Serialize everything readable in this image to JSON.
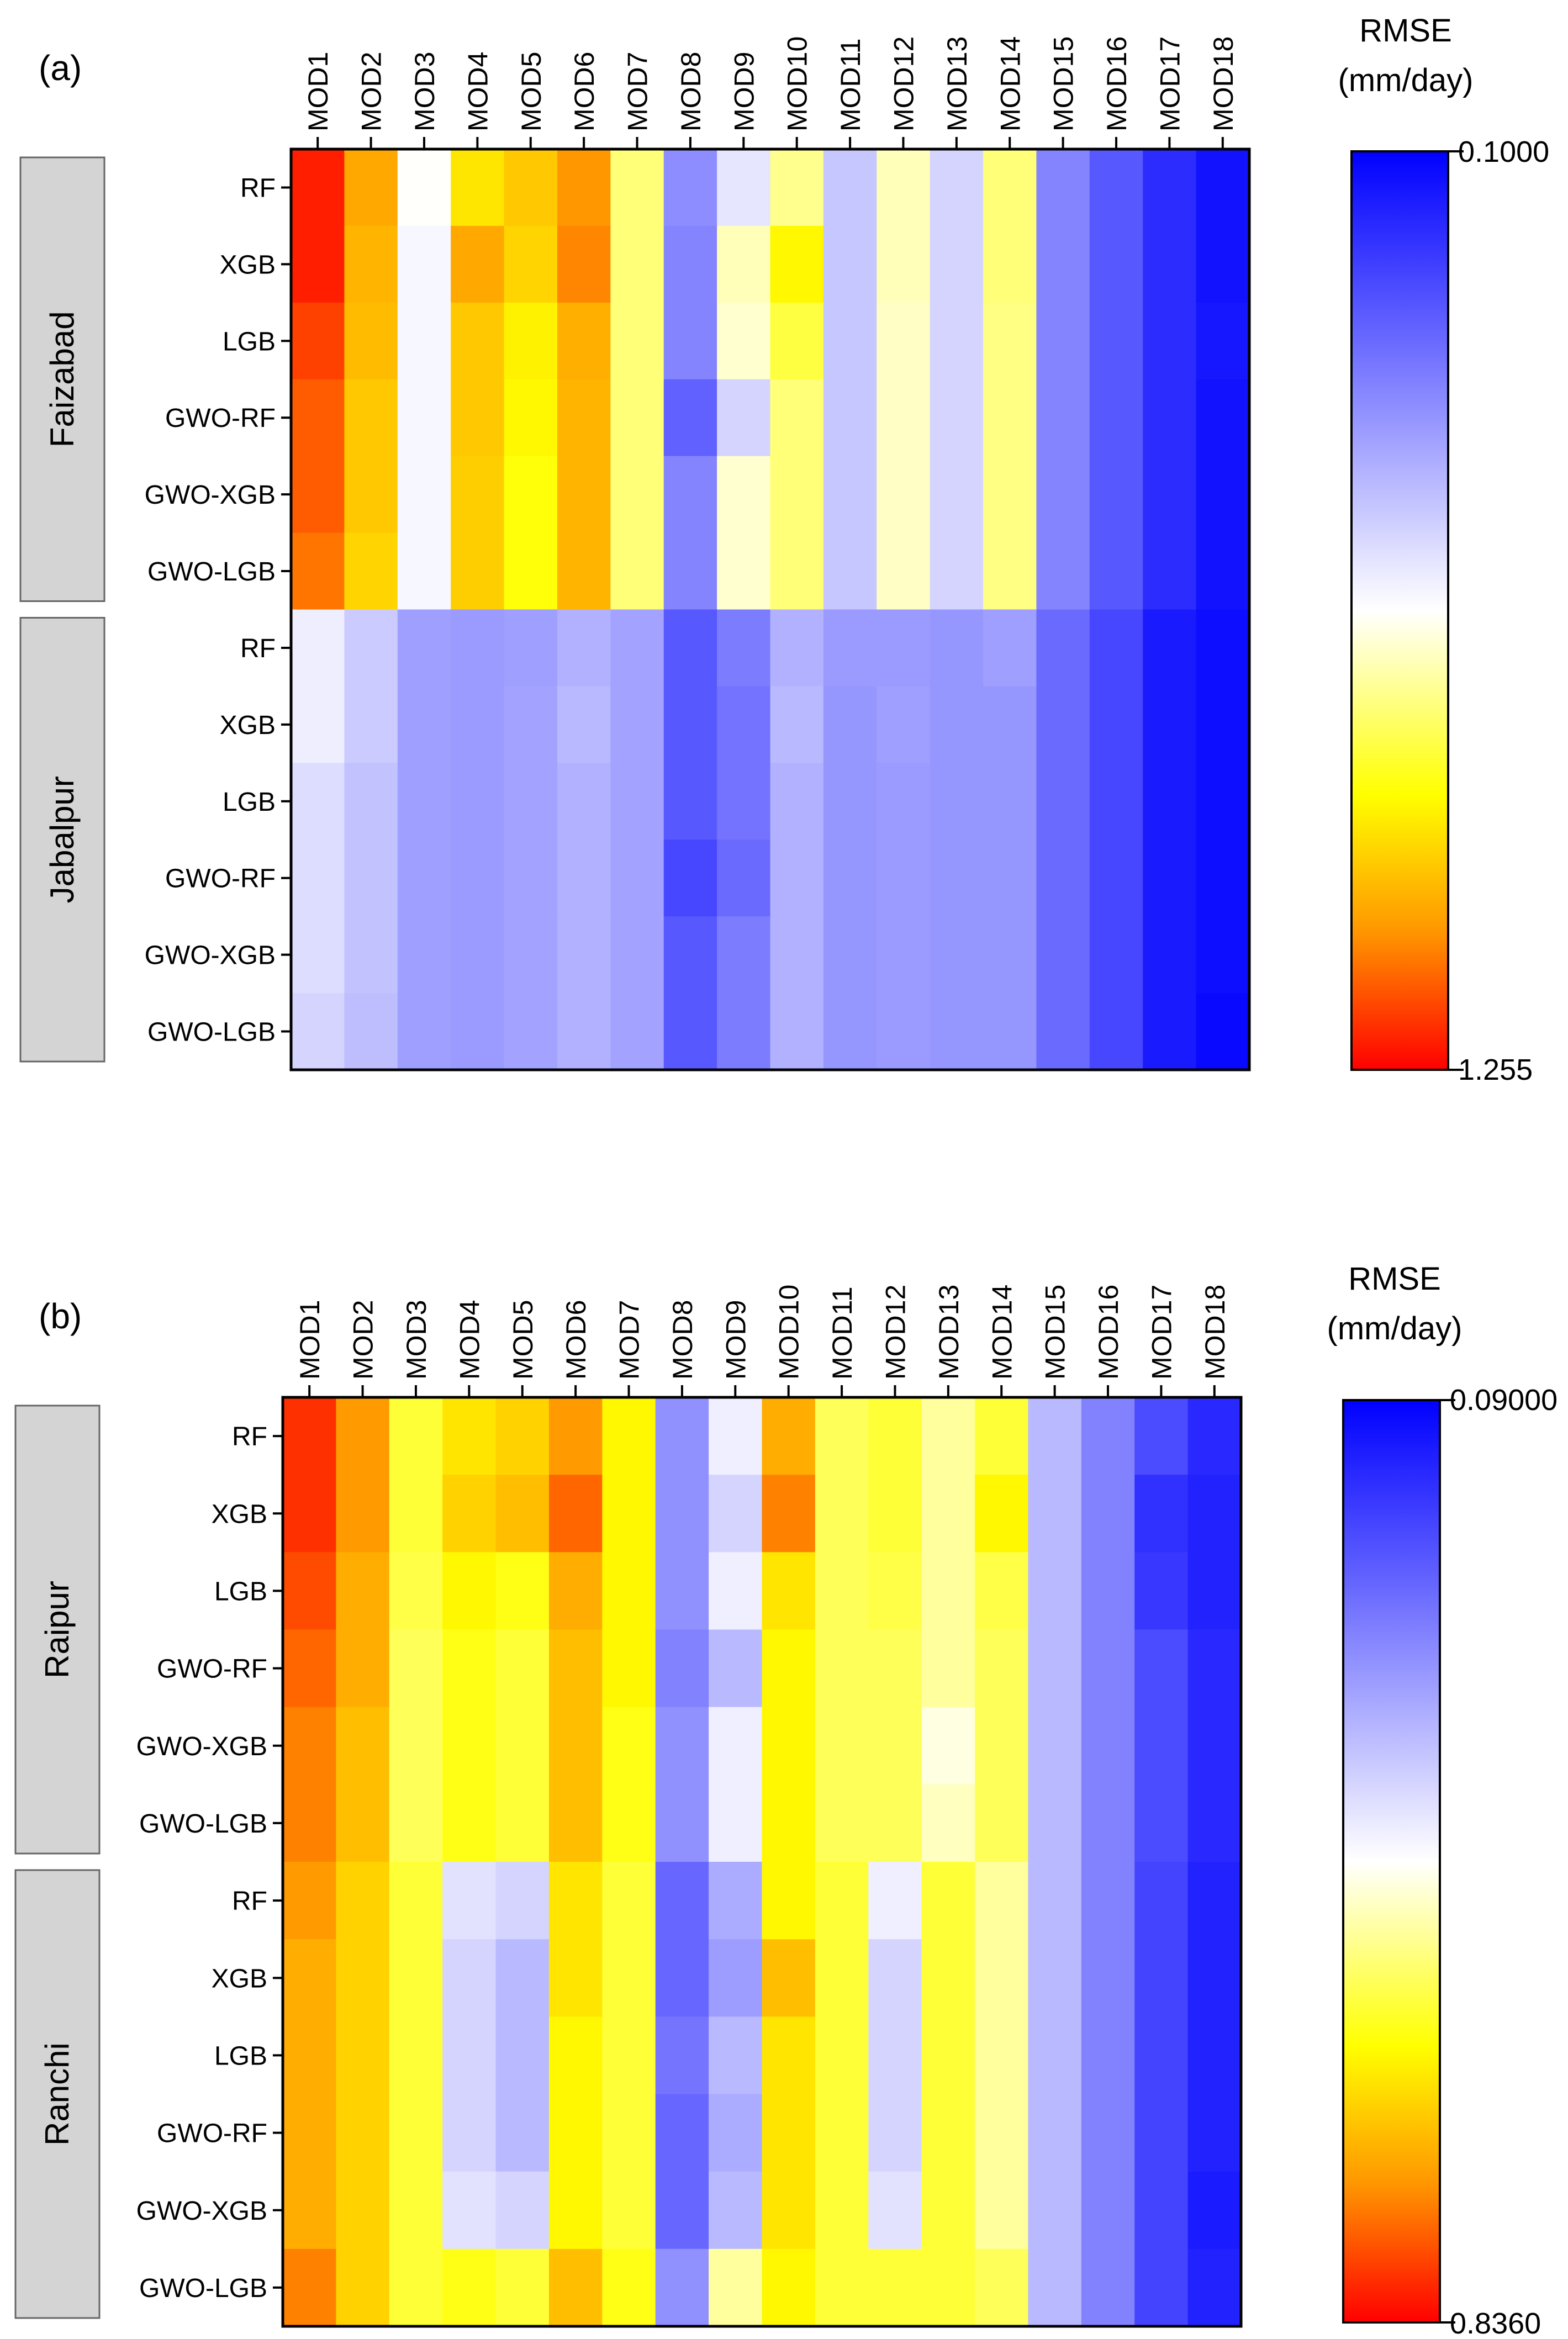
{
  "chart_data": [
    {
      "type": "heatmap",
      "panel_label": "(a)",
      "metric": "RMSE",
      "unit": "(mm/day)",
      "colorbar": {
        "top": "0.1000",
        "bottom": "1.255",
        "min": 0.1,
        "max": 1.255
      },
      "x_labels": [
        "MOD1",
        "MOD2",
        "MOD3",
        "MOD4",
        "MOD5",
        "MOD6",
        "MOD7",
        "MOD8",
        "MOD9",
        "MOD10",
        "MOD11",
        "MOD12",
        "MOD13",
        "MOD14",
        "MOD15",
        "MOD16",
        "MOD17",
        "MOD18"
      ],
      "y_labels": [
        "RF",
        "XGB",
        "LGB",
        "GWO-RF",
        "GWO-XGB",
        "GWO-LGB",
        "RF",
        "XGB",
        "LGB",
        "GWO-RF",
        "GWO-XGB",
        "GWO-LGB"
      ],
      "groups": [
        {
          "name": "Faizabad",
          "rows": 6
        },
        {
          "name": "Jabalpur",
          "rows": 6
        }
      ],
      "values": [
        [
          1.22,
          1.05,
          0.68,
          0.95,
          1.0,
          1.08,
          0.8,
          0.42,
          0.62,
          0.78,
          0.55,
          0.74,
          0.58,
          0.8,
          0.4,
          0.3,
          0.2,
          0.14
        ],
        [
          1.22,
          1.03,
          0.66,
          1.05,
          0.98,
          1.1,
          0.8,
          0.4,
          0.74,
          0.92,
          0.55,
          0.74,
          0.58,
          0.8,
          0.4,
          0.3,
          0.2,
          0.14
        ],
        [
          1.18,
          1.02,
          0.66,
          1.0,
          0.93,
          1.04,
          0.8,
          0.4,
          0.72,
          0.85,
          0.55,
          0.73,
          0.58,
          0.79,
          0.4,
          0.3,
          0.2,
          0.15
        ],
        [
          1.15,
          1.0,
          0.66,
          1.0,
          0.92,
          1.03,
          0.8,
          0.32,
          0.58,
          0.8,
          0.55,
          0.73,
          0.58,
          0.79,
          0.4,
          0.3,
          0.2,
          0.14
        ],
        [
          1.15,
          1.0,
          0.66,
          0.99,
          0.9,
          1.03,
          0.8,
          0.4,
          0.72,
          0.8,
          0.55,
          0.73,
          0.58,
          0.79,
          0.4,
          0.3,
          0.2,
          0.14
        ],
        [
          1.12,
          0.98,
          0.66,
          0.99,
          0.9,
          1.03,
          0.8,
          0.4,
          0.72,
          0.8,
          0.55,
          0.73,
          0.58,
          0.79,
          0.4,
          0.3,
          0.2,
          0.14
        ],
        [
          0.64,
          0.56,
          0.46,
          0.45,
          0.46,
          0.5,
          0.47,
          0.3,
          0.38,
          0.5,
          0.45,
          0.45,
          0.44,
          0.46,
          0.34,
          0.26,
          0.16,
          0.13
        ],
        [
          0.64,
          0.56,
          0.46,
          0.45,
          0.47,
          0.52,
          0.47,
          0.3,
          0.36,
          0.52,
          0.44,
          0.46,
          0.44,
          0.44,
          0.34,
          0.26,
          0.16,
          0.13
        ],
        [
          0.6,
          0.54,
          0.46,
          0.45,
          0.47,
          0.5,
          0.47,
          0.3,
          0.36,
          0.5,
          0.44,
          0.45,
          0.44,
          0.44,
          0.34,
          0.26,
          0.16,
          0.13
        ],
        [
          0.6,
          0.54,
          0.46,
          0.45,
          0.47,
          0.5,
          0.47,
          0.26,
          0.34,
          0.5,
          0.44,
          0.45,
          0.44,
          0.44,
          0.34,
          0.26,
          0.16,
          0.13
        ],
        [
          0.6,
          0.54,
          0.46,
          0.45,
          0.47,
          0.5,
          0.47,
          0.3,
          0.38,
          0.5,
          0.44,
          0.45,
          0.44,
          0.44,
          0.34,
          0.26,
          0.16,
          0.13
        ],
        [
          0.58,
          0.53,
          0.46,
          0.45,
          0.47,
          0.5,
          0.47,
          0.3,
          0.38,
          0.5,
          0.44,
          0.45,
          0.44,
          0.44,
          0.34,
          0.26,
          0.16,
          0.12
        ]
      ]
    },
    {
      "type": "heatmap",
      "panel_label": "(b)",
      "metric": "RMSE",
      "unit": "(mm/day)",
      "colorbar": {
        "top": "0.09000",
        "bottom": "0.8360",
        "min": 0.09,
        "max": 0.836
      },
      "x_labels": [
        "MOD1",
        "MOD2",
        "MOD3",
        "MOD4",
        "MOD5",
        "MOD6",
        "MOD7",
        "MOD8",
        "MOD9",
        "MOD10",
        "MOD11",
        "MOD12",
        "MOD13",
        "MOD14",
        "MOD15",
        "MOD16",
        "MOD17",
        "MOD18"
      ],
      "y_labels": [
        "RF",
        "XGB",
        "LGB",
        "GWO-RF",
        "GWO-XGB",
        "GWO-LGB",
        "RF",
        "XGB",
        "LGB",
        "GWO-RF",
        "GWO-XGB",
        "GWO-LGB"
      ],
      "groups": [
        {
          "name": "Raipur",
          "rows": 6
        },
        {
          "name": "Ranchi",
          "rows": 6
        }
      ],
      "values": [
        [
          0.8,
          0.72,
          0.58,
          0.64,
          0.66,
          0.72,
          0.62,
          0.3,
          0.44,
          0.7,
          0.56,
          0.58,
          0.52,
          0.58,
          0.36,
          0.28,
          0.2,
          0.15
        ],
        [
          0.8,
          0.72,
          0.58,
          0.66,
          0.68,
          0.76,
          0.62,
          0.3,
          0.4,
          0.74,
          0.56,
          0.58,
          0.52,
          0.62,
          0.36,
          0.28,
          0.16,
          0.14
        ],
        [
          0.78,
          0.7,
          0.57,
          0.62,
          0.6,
          0.7,
          0.62,
          0.3,
          0.44,
          0.64,
          0.56,
          0.57,
          0.52,
          0.57,
          0.36,
          0.28,
          0.17,
          0.14
        ],
        [
          0.76,
          0.7,
          0.56,
          0.6,
          0.58,
          0.68,
          0.62,
          0.28,
          0.36,
          0.62,
          0.56,
          0.56,
          0.52,
          0.56,
          0.36,
          0.28,
          0.2,
          0.15
        ],
        [
          0.74,
          0.68,
          0.56,
          0.6,
          0.58,
          0.68,
          0.6,
          0.3,
          0.44,
          0.62,
          0.56,
          0.56,
          0.48,
          0.56,
          0.36,
          0.28,
          0.2,
          0.15
        ],
        [
          0.74,
          0.68,
          0.56,
          0.6,
          0.58,
          0.68,
          0.6,
          0.3,
          0.44,
          0.62,
          0.56,
          0.56,
          0.5,
          0.56,
          0.36,
          0.28,
          0.2,
          0.15
        ],
        [
          0.72,
          0.66,
          0.58,
          0.42,
          0.4,
          0.64,
          0.58,
          0.24,
          0.34,
          0.62,
          0.58,
          0.44,
          0.58,
          0.52,
          0.36,
          0.28,
          0.19,
          0.14
        ],
        [
          0.7,
          0.66,
          0.58,
          0.4,
          0.36,
          0.64,
          0.58,
          0.24,
          0.32,
          0.68,
          0.58,
          0.4,
          0.58,
          0.52,
          0.36,
          0.28,
          0.19,
          0.14
        ],
        [
          0.7,
          0.66,
          0.58,
          0.4,
          0.36,
          0.62,
          0.58,
          0.26,
          0.36,
          0.64,
          0.58,
          0.4,
          0.58,
          0.52,
          0.36,
          0.28,
          0.19,
          0.14
        ],
        [
          0.7,
          0.66,
          0.58,
          0.4,
          0.36,
          0.62,
          0.58,
          0.24,
          0.34,
          0.64,
          0.58,
          0.4,
          0.58,
          0.52,
          0.36,
          0.28,
          0.19,
          0.14
        ],
        [
          0.7,
          0.66,
          0.58,
          0.42,
          0.4,
          0.62,
          0.58,
          0.24,
          0.36,
          0.64,
          0.58,
          0.42,
          0.58,
          0.52,
          0.36,
          0.28,
          0.19,
          0.13
        ],
        [
          0.74,
          0.66,
          0.58,
          0.6,
          0.58,
          0.68,
          0.6,
          0.3,
          0.52,
          0.62,
          0.58,
          0.58,
          0.58,
          0.56,
          0.36,
          0.28,
          0.19,
          0.14
        ]
      ]
    }
  ]
}
